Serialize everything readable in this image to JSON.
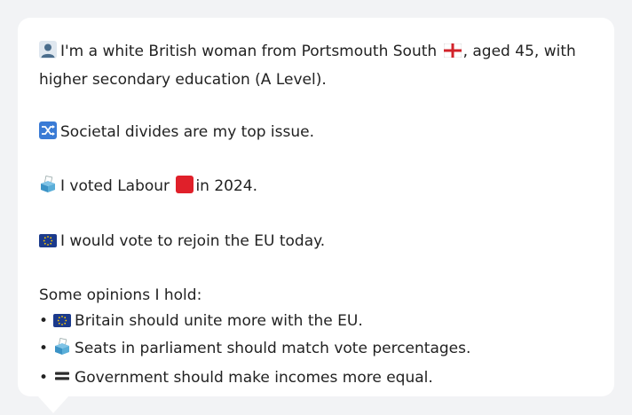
{
  "profile": {
    "line1_a": "I'm a white British woman from Portsmouth South",
    "line1_b": ", aged 45, with higher secondary education (A Level).",
    "issue": "Societal divides are my top issue.",
    "vote_a": "I voted Labour",
    "vote_b": "in 2024.",
    "eu": "I would vote to rejoin the EU today."
  },
  "opinions": {
    "heading": "Some opinions I hold:",
    "bullet": "•",
    "items": [
      {
        "icon": "eu-flag-icon",
        "text": "Britain should unite more with the EU."
      },
      {
        "icon": "ballot-box-icon",
        "text": "Seats in parliament should match vote percentages."
      },
      {
        "icon": "equals-icon",
        "text": "Government should make incomes more equal."
      }
    ]
  },
  "colors": {
    "labour_red": "#e0202a",
    "eu_blue": "#1b3a8c",
    "eu_star": "#ffcc00",
    "shuffle_blue": "#3a7bd5",
    "person_blue": "#4a6d8c"
  }
}
